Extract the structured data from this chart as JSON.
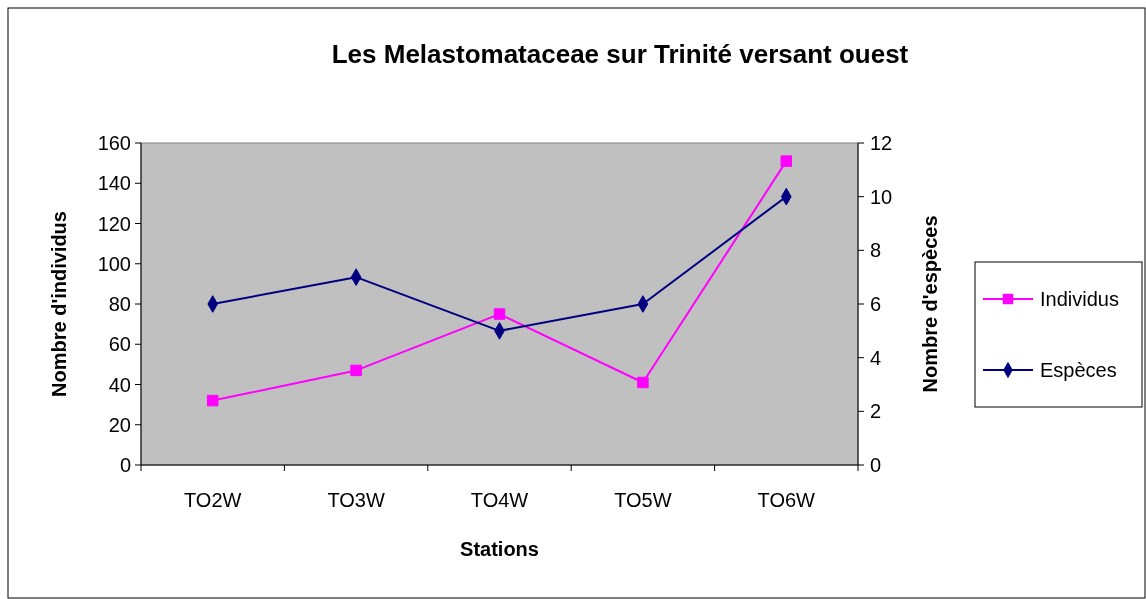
{
  "chart_data": {
    "type": "line",
    "title": "Les Melastomataceae sur Trinité versant ouest",
    "xlabel": "Stations",
    "ylabel": "Nombre d'individus",
    "y2label": "Nombre d'espèces",
    "categories": [
      "TO2W",
      "TO3W",
      "TO4W",
      "TO5W",
      "TO6W"
    ],
    "series": [
      {
        "name": "Individus",
        "color": "#ff00ff",
        "marker": "square",
        "values": [
          32,
          47,
          75,
          41,
          151
        ]
      },
      {
        "name": "Espèces",
        "color": "#000080",
        "marker": "diamond",
        "axis": "y2",
        "values": [
          6,
          7,
          5,
          6,
          10
        ]
      }
    ],
    "ylim": [
      0,
      160
    ],
    "yticks": [
      0,
      20,
      40,
      60,
      80,
      100,
      120,
      140,
      160
    ],
    "y2lim": [
      0,
      12
    ],
    "y2ticks": [
      0,
      2,
      4,
      6,
      8,
      10,
      12
    ],
    "grid": false,
    "legend": "right"
  }
}
